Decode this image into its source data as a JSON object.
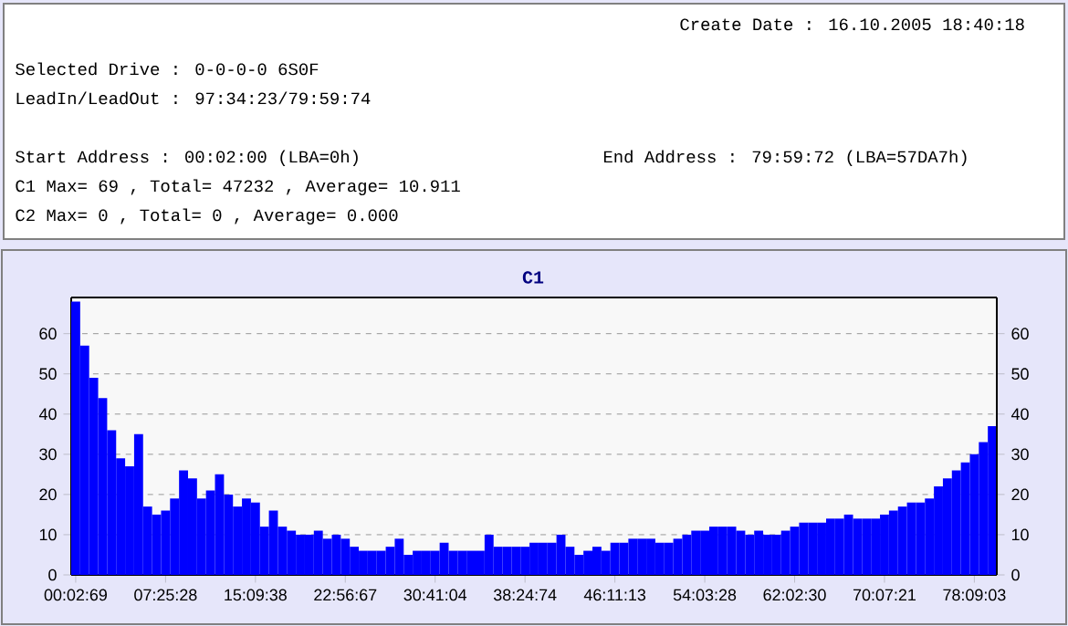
{
  "chart_data": {
    "type": "bar",
    "title": "C1",
    "annotations": [
      "Create Date    : 16.10.2005 18:40:18",
      "Selected Drive : 0-0-0-0 6S0F",
      "LeadIn/LeadOut : 97:34:23/79:59:74",
      "Start Address  : 00:02:00 (LBA=0h)",
      "End Address    : 79:59:72 (LBA=57DA7h)",
      "C1 Max= 69 , Total= 47232 , Average= 10.911",
      "C2 Max= 0 , Total= 0 , Average= 0.000"
    ],
    "categories": [
      "00:02:69",
      null,
      null,
      null,
      null,
      null,
      null,
      null,
      null,
      null,
      "07:25:28",
      null,
      null,
      null,
      null,
      null,
      null,
      null,
      null,
      null,
      "15:09:38",
      null,
      null,
      null,
      null,
      null,
      null,
      null,
      null,
      null,
      "22:56:67",
      null,
      null,
      null,
      null,
      null,
      null,
      null,
      null,
      null,
      "30:41:04",
      null,
      null,
      null,
      null,
      null,
      null,
      null,
      null,
      null,
      "38:24:74",
      null,
      null,
      null,
      null,
      null,
      null,
      null,
      null,
      null,
      "46:11:13",
      null,
      null,
      null,
      null,
      null,
      null,
      null,
      null,
      null,
      "54:03:28",
      null,
      null,
      null,
      null,
      null,
      null,
      null,
      null,
      null,
      "62:02:30",
      null,
      null,
      null,
      null,
      null,
      null,
      null,
      null,
      null,
      "70:07:21",
      null,
      null,
      null,
      null,
      null,
      null,
      null,
      null,
      null,
      "78:09:03",
      null,
      null
    ],
    "values": [
      68,
      57,
      49,
      44,
      36,
      29,
      27,
      35,
      17,
      15,
      16,
      19,
      26,
      24,
      19,
      21,
      25,
      20,
      17,
      19,
      18,
      12,
      16,
      12,
      11,
      10,
      10,
      11,
      9,
      10,
      9,
      7,
      6,
      6,
      6,
      7,
      9,
      5,
      6,
      6,
      6,
      8,
      6,
      6,
      6,
      6,
      10,
      7,
      7,
      7,
      7,
      8,
      8,
      8,
      10,
      7,
      5,
      6,
      7,
      6,
      8,
      8,
      9,
      9,
      9,
      8,
      8,
      9,
      10,
      11,
      11,
      12,
      12,
      12,
      11,
      10,
      11,
      10,
      10,
      11,
      12,
      13,
      13,
      13,
      14,
      14,
      15,
      14,
      14,
      14,
      15,
      16,
      17,
      18,
      18,
      19,
      22,
      24,
      26,
      28,
      30,
      33,
      37
    ],
    "color": "#0000ff",
    "ylim": [
      0,
      69
    ],
    "yticks": [
      0,
      10,
      20,
      30,
      40,
      50,
      60
    ],
    "y2lim": [
      0,
      69
    ],
    "y2ticks": [
      0,
      10,
      20,
      30,
      40,
      50,
      60
    ],
    "grid": "y"
  }
}
